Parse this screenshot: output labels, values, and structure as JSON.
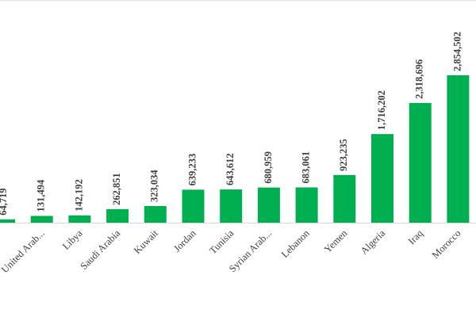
{
  "chart_data": {
    "type": "bar",
    "categories": [
      null,
      "United Arab...",
      "Libya",
      "Saudi Arabia",
      "Kuwait",
      "Jordan",
      "Tunisia",
      "Syrian Arab...",
      "Lebanon",
      "Yemen",
      "Algeria",
      "Iraq",
      "Morocco"
    ],
    "values": [
      64719,
      131494,
      142192,
      262851,
      323034,
      639233,
      643612,
      680959,
      683061,
      923235,
      1716202,
      2318696,
      2854502
    ],
    "value_labels": [
      "64,719",
      "131,494",
      "142,192",
      "262,851",
      "323,034",
      "639,233",
      "643,612",
      "680,959",
      "683,061",
      "923,235",
      "1,716,202",
      "2,318,696",
      "2,854,502"
    ],
    "color": "#00b050"
  }
}
